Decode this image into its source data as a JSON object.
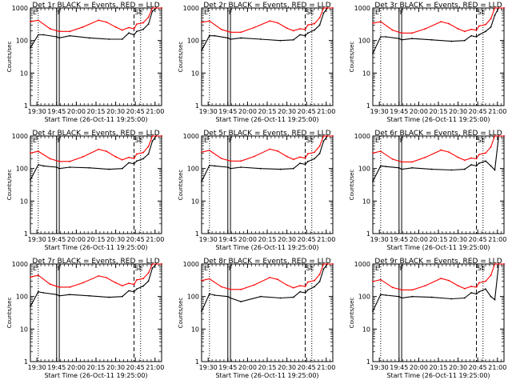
{
  "figure": {
    "ylabel": "Counts/sec",
    "xlabel": "Start Time (26-Oct-11 19:25:00)",
    "y_ticks": [
      "1",
      "10",
      "100",
      "1000"
    ],
    "x_ticks": [
      "19:30",
      "19:45",
      "20:00",
      "20:15",
      "20:30",
      "20:45",
      "21:00"
    ],
    "flags": {
      "left": "E",
      "mid": "F",
      "right": "SE"
    },
    "series_colors": {
      "events": "#000000",
      "lld": "#ff0000"
    }
  },
  "chart_data": [
    {
      "type": "line",
      "title": "Det 1r BLACK = Events, RED = LLD",
      "ylim": [
        1,
        1000
      ],
      "yscale": "log",
      "x_minutes_ticks": [
        5,
        20,
        35,
        50,
        65,
        80,
        95
      ],
      "series": [
        {
          "key": "events",
          "x": [
            0,
            6,
            10,
            20,
            22,
            30,
            45,
            60,
            70,
            75,
            79,
            81,
            86,
            90,
            93,
            96,
            100
          ],
          "values": [
            60,
            150,
            150,
            130,
            120,
            140,
            120,
            110,
            110,
            170,
            150,
            190,
            220,
            320,
            800,
            1000,
            1000
          ]
        },
        {
          "key": "lld",
          "x": [
            0,
            6,
            15,
            22,
            30,
            40,
            52,
            58,
            65,
            70,
            75,
            79,
            81,
            86,
            90,
            93,
            96,
            100
          ],
          "values": [
            380,
            420,
            230,
            190,
            190,
            260,
            420,
            370,
            260,
            210,
            250,
            230,
            320,
            350,
            520,
            1000,
            1000,
            1000
          ]
        }
      ]
    },
    {
      "type": "line",
      "title": "Det 2r BLACK = Events, RED = LLD",
      "ylim": [
        1,
        1000
      ],
      "yscale": "log",
      "x_minutes_ticks": [
        5,
        20,
        35,
        50,
        65,
        80,
        95
      ],
      "series": [
        {
          "key": "events",
          "x": [
            0,
            6,
            10,
            20,
            22,
            30,
            45,
            60,
            70,
            75,
            79,
            81,
            86,
            90,
            93,
            96,
            100
          ],
          "values": [
            50,
            140,
            140,
            120,
            110,
            120,
            110,
            100,
            105,
            150,
            140,
            170,
            210,
            300,
            700,
            1000,
            1000
          ]
        },
        {
          "key": "lld",
          "x": [
            0,
            6,
            15,
            22,
            30,
            40,
            52,
            58,
            65,
            70,
            75,
            79,
            81,
            86,
            90,
            93,
            96,
            100
          ],
          "values": [
            360,
            400,
            220,
            180,
            180,
            250,
            400,
            350,
            240,
            200,
            230,
            220,
            300,
            330,
            500,
            1000,
            1000,
            1000
          ]
        }
      ]
    },
    {
      "type": "line",
      "title": "Det 3r BLACK = Events, RED = LLD",
      "ylim": [
        1,
        1000
      ],
      "yscale": "log",
      "x_minutes_ticks": [
        5,
        20,
        35,
        50,
        65,
        80,
        95
      ],
      "series": [
        {
          "key": "events",
          "x": [
            0,
            6,
            10,
            20,
            22,
            30,
            45,
            60,
            70,
            75,
            79,
            81,
            86,
            90,
            93,
            96,
            100
          ],
          "values": [
            40,
            130,
            130,
            115,
            105,
            115,
            105,
            95,
            100,
            140,
            130,
            150,
            190,
            260,
            600,
            1000,
            1000
          ]
        },
        {
          "key": "lld",
          "x": [
            0,
            6,
            15,
            22,
            30,
            40,
            52,
            58,
            65,
            70,
            75,
            79,
            81,
            86,
            90,
            93,
            96,
            100
          ],
          "values": [
            340,
            380,
            210,
            170,
            170,
            230,
            380,
            330,
            230,
            190,
            220,
            210,
            280,
            310,
            470,
            1000,
            1000,
            1000
          ]
        }
      ]
    },
    {
      "type": "line",
      "title": "Det 4r BLACK = Events, RED = LLD",
      "ylim": [
        1,
        1000
      ],
      "yscale": "log",
      "x_minutes_ticks": [
        5,
        20,
        35,
        50,
        65,
        80,
        95
      ],
      "series": [
        {
          "key": "events",
          "x": [
            0,
            6,
            10,
            20,
            22,
            30,
            45,
            60,
            70,
            75,
            79,
            81,
            86,
            90,
            93,
            96,
            100
          ],
          "values": [
            45,
            130,
            120,
            110,
            100,
            110,
            105,
            95,
            100,
            150,
            140,
            170,
            200,
            280,
            700,
            1000,
            1000
          ]
        },
        {
          "key": "lld",
          "x": [
            0,
            6,
            15,
            22,
            30,
            40,
            52,
            58,
            65,
            70,
            75,
            79,
            81,
            86,
            90,
            93,
            96,
            100
          ],
          "values": [
            300,
            340,
            200,
            165,
            165,
            230,
            390,
            340,
            230,
            185,
            220,
            205,
            280,
            310,
            480,
            1000,
            1000,
            1000
          ]
        }
      ]
    },
    {
      "type": "line",
      "title": "Det 5r BLACK = Events, RED = LLD",
      "ylim": [
        1,
        1000
      ],
      "yscale": "log",
      "x_minutes_ticks": [
        5,
        20,
        35,
        50,
        65,
        80,
        95
      ],
      "series": [
        {
          "key": "events",
          "x": [
            0,
            6,
            10,
            20,
            22,
            30,
            45,
            60,
            70,
            75,
            79,
            81,
            86,
            90,
            93,
            96,
            100
          ],
          "values": [
            40,
            125,
            120,
            110,
            100,
            110,
            100,
            95,
            100,
            145,
            135,
            165,
            200,
            290,
            700,
            1000,
            1000
          ]
        },
        {
          "key": "lld",
          "x": [
            0,
            6,
            15,
            22,
            30,
            40,
            52,
            58,
            65,
            70,
            75,
            79,
            81,
            86,
            90,
            93,
            96,
            100
          ],
          "values": [
            320,
            360,
            205,
            170,
            170,
            235,
            395,
            345,
            235,
            190,
            225,
            210,
            285,
            315,
            490,
            1000,
            1000,
            1000
          ]
        }
      ]
    },
    {
      "type": "line",
      "title": "Det 6r BLACK = Events, RED = LLD",
      "ylim": [
        1,
        1000
      ],
      "yscale": "log",
      "x_minutes_ticks": [
        5,
        20,
        35,
        50,
        65,
        80,
        95
      ],
      "series": [
        {
          "key": "events",
          "x": [
            0,
            6,
            10,
            20,
            22,
            30,
            45,
            60,
            70,
            75,
            79,
            81,
            86,
            90,
            93,
            96,
            100
          ],
          "values": [
            40,
            120,
            115,
            105,
            95,
            105,
            95,
            90,
            95,
            130,
            120,
            145,
            170,
            120,
            90,
            1000,
            1000
          ]
        },
        {
          "key": "lld",
          "x": [
            0,
            6,
            15,
            22,
            30,
            40,
            52,
            58,
            65,
            70,
            75,
            79,
            81,
            86,
            90,
            93,
            96,
            100
          ],
          "values": [
            300,
            340,
            195,
            160,
            160,
            220,
            370,
            320,
            220,
            180,
            210,
            200,
            270,
            300,
            460,
            1000,
            1000,
            1000
          ]
        }
      ]
    },
    {
      "type": "line",
      "title": "Det 7r BLACK = Events, RED = LLD",
      "ylim": [
        1,
        1000
      ],
      "yscale": "log",
      "x_minutes_ticks": [
        5,
        20,
        35,
        50,
        65,
        80,
        95
      ],
      "series": [
        {
          "key": "events",
          "x": [
            0,
            6,
            10,
            20,
            22,
            30,
            45,
            60,
            70,
            75,
            79,
            81,
            86,
            90,
            93,
            96,
            100
          ],
          "values": [
            50,
            140,
            130,
            115,
            105,
            115,
            105,
            95,
            100,
            150,
            140,
            170,
            210,
            300,
            750,
            1000,
            1000
          ]
        },
        {
          "key": "lld",
          "x": [
            0,
            6,
            15,
            22,
            30,
            40,
            52,
            58,
            65,
            70,
            75,
            79,
            81,
            86,
            90,
            93,
            96,
            100
          ],
          "values": [
            400,
            450,
            240,
            195,
            195,
            265,
            430,
            380,
            265,
            215,
            255,
            235,
            325,
            355,
            530,
            1000,
            1000,
            1000
          ]
        }
      ]
    },
    {
      "type": "line",
      "title": "Det 8r BLACK = Events, RED = LLD",
      "ylim": [
        1,
        1000
      ],
      "yscale": "log",
      "x_minutes_ticks": [
        5,
        20,
        35,
        50,
        65,
        80,
        95
      ],
      "series": [
        {
          "key": "events",
          "x": [
            0,
            6,
            10,
            20,
            22,
            30,
            45,
            60,
            70,
            75,
            79,
            81,
            86,
            90,
            93,
            96,
            100
          ],
          "values": [
            35,
            120,
            110,
            100,
            90,
            70,
            100,
            90,
            95,
            140,
            130,
            160,
            200,
            290,
            700,
            1000,
            1000
          ]
        },
        {
          "key": "lld",
          "x": [
            0,
            6,
            15,
            22,
            30,
            40,
            52,
            58,
            65,
            70,
            75,
            79,
            81,
            86,
            90,
            93,
            96,
            100
          ],
          "values": [
            310,
            350,
            200,
            165,
            165,
            225,
            385,
            335,
            225,
            185,
            215,
            205,
            280,
            310,
            480,
            1000,
            1000,
            1000
          ]
        }
      ]
    },
    {
      "type": "line",
      "title": "Det 9r BLACK = Events, RED = LLD",
      "ylim": [
        1,
        1000
      ],
      "yscale": "log",
      "x_minutes_ticks": [
        5,
        20,
        35,
        50,
        65,
        80,
        95
      ],
      "series": [
        {
          "key": "events",
          "x": [
            0,
            6,
            10,
            20,
            22,
            30,
            45,
            60,
            70,
            75,
            79,
            81,
            86,
            90,
            93,
            96,
            100
          ],
          "values": [
            35,
            115,
            110,
            100,
            90,
            100,
            95,
            85,
            90,
            130,
            120,
            140,
            170,
            100,
            80,
            1000,
            1000
          ]
        },
        {
          "key": "lld",
          "x": [
            0,
            6,
            15,
            22,
            30,
            40,
            52,
            58,
            65,
            70,
            75,
            79,
            81,
            86,
            90,
            93,
            96,
            100
          ],
          "values": [
            290,
            330,
            190,
            160,
            160,
            215,
            360,
            310,
            215,
            175,
            205,
            195,
            265,
            295,
            450,
            1000,
            1000,
            1000
          ]
        }
      ]
    }
  ]
}
